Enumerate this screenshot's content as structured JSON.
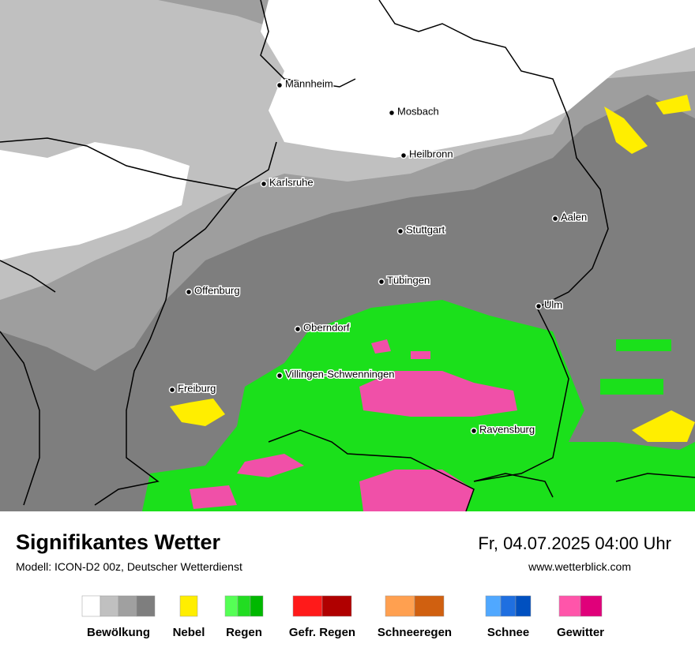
{
  "map": {
    "cities": [
      {
        "name": "Mannheim"
      },
      {
        "name": "Mosbach"
      },
      {
        "name": "Heilbronn"
      },
      {
        "name": "Karlsruhe"
      },
      {
        "name": "Aalen"
      },
      {
        "name": "Stuttgart"
      },
      {
        "name": "Offenburg"
      },
      {
        "name": "Tübingen"
      },
      {
        "name": "Ulm"
      },
      {
        "name": "Oberndorf"
      },
      {
        "name": "Villingen-Schwenningen"
      },
      {
        "name": "Freiburg"
      },
      {
        "name": "Ravensburg"
      }
    ]
  },
  "footer": {
    "title": "Signifikantes Wetter",
    "model": "Modell: ICON-D2 00z, Deutscher Wetterdienst",
    "datetime": "Fr, 04.07.2025 04:00 Uhr",
    "website": "www.wetterblick.com"
  },
  "legend": [
    {
      "label": "Bewölkung",
      "colors": [
        "#ffffff",
        "#c0c0c0",
        "#a0a0a0",
        "#7e7e7e"
      ]
    },
    {
      "label": "Nebel",
      "colors": [
        "#ffee00"
      ]
    },
    {
      "label": "Regen",
      "colors": [
        "#55ff55",
        "#22dd22",
        "#00b800"
      ]
    },
    {
      "label": "Gefr. Regen",
      "colors": [
        "#ff1a1a",
        "#b00000"
      ]
    },
    {
      "label": "Schneeregen",
      "colors": [
        "#ffa050",
        "#d06010"
      ]
    },
    {
      "label": "Schnee",
      "colors": [
        "#50a8ff",
        "#1f6fe0",
        "#0050c0"
      ]
    },
    {
      "label": "Gewitter",
      "colors": [
        "#ff55aa",
        "#e0007a"
      ]
    }
  ]
}
